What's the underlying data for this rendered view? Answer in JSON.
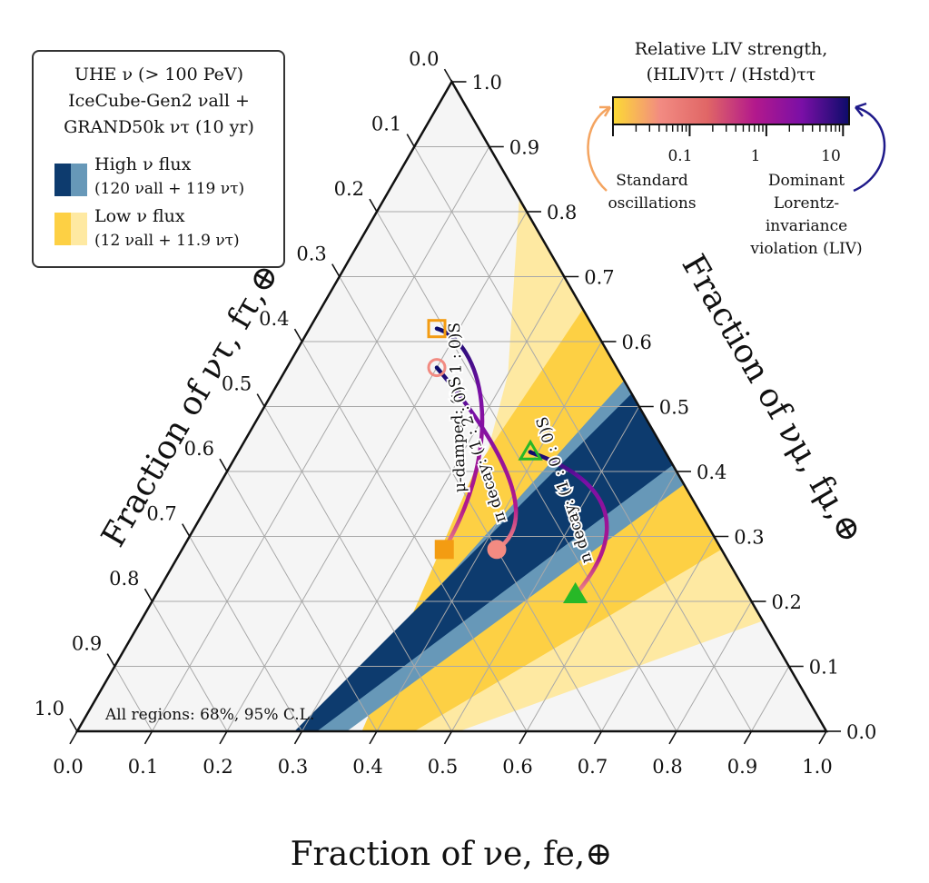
{
  "chart_data": {
    "type": "ternary",
    "axes": {
      "bottom": {
        "label": "Fraction of νe, fe,⊕",
        "ticks": [
          "0.0",
          "0.1",
          "0.2",
          "0.3",
          "0.4",
          "0.5",
          "0.6",
          "0.7",
          "0.8",
          "0.9",
          "1.0"
        ]
      },
      "right": {
        "label": "Fraction of νμ, fμ,⊕",
        "ticks": [
          "0.0",
          "0.1",
          "0.2",
          "0.3",
          "0.4",
          "0.5",
          "0.6",
          "0.7",
          "0.8",
          "0.9",
          "1.0"
        ]
      },
      "left": {
        "label": "Fraction of ντ, fτ,⊕",
        "ticks": [
          "0.0",
          "0.1",
          "0.2",
          "0.3",
          "0.4",
          "0.5",
          "0.6",
          "0.7",
          "0.8",
          "0.9",
          "1.0"
        ]
      }
    },
    "legend": {
      "title_lines": [
        "UHE ν (> 100 PeV)",
        "IceCube-Gen2 νall +",
        "GRAND50k ντ (10 yr)"
      ],
      "entries": [
        {
          "name": "High ν flux",
          "detail": "(120 νall + 119 ντ)",
          "colors": [
            "#0d3b6e",
            "#6798b8"
          ]
        },
        {
          "name": "Low ν flux",
          "detail": "(12 νall + 11.9 ντ)",
          "colors": [
            "#fdd044",
            "#fee9a2"
          ]
        }
      ]
    },
    "note": "All regions: 68%, 95% C.L.",
    "regions": [
      {
        "name": "Low flux 95% C.L.",
        "color": "#fee9a2",
        "poly": [
          [
            0.18,
            0.82,
            0.0
          ],
          [
            0.83,
            0.17,
            0.0
          ],
          [
            0.51,
            0.0,
            0.49
          ],
          [
            0.45,
            0.0,
            0.55
          ],
          [
            0.3,
            0.55,
            0.15
          ]
        ]
      },
      {
        "name": "Low flux 68% C.L.",
        "color": "#fdd044",
        "poly": [
          [
            0.35,
            0.65,
            0.0
          ],
          [
            0.72,
            0.28,
            0.0
          ],
          [
            0.45,
            0.0,
            0.55
          ],
          [
            0.38,
            0.0,
            0.62
          ],
          [
            0.33,
            0.4,
            0.27
          ]
        ]
      },
      {
        "name": "High flux 95% C.L.",
        "color": "#6798b8",
        "poly": [
          [
            0.46,
            0.54,
            0.0
          ],
          [
            0.62,
            0.38,
            0.0
          ],
          [
            0.36,
            0.0,
            0.64
          ],
          [
            0.31,
            0.0,
            0.69
          ]
        ]
      },
      {
        "name": "High flux 68% C.L.",
        "color": "#0d3b6e",
        "poly": [
          [
            0.48,
            0.52,
            0.0
          ],
          [
            0.59,
            0.41,
            0.0
          ],
          [
            0.32,
            0.0,
            0.68
          ],
          [
            0.29,
            0.0,
            0.71
          ]
        ]
      }
    ],
    "paths": [
      {
        "label": "μ-damped: (0 : 1 : 0)S",
        "marker": "square",
        "marker_color": "#f39c12",
        "start": [
          0.35,
          0.28,
          0.37
        ],
        "end": [
          0.17,
          0.62,
          0.21
        ],
        "ctrl1": [
          0.35,
          0.45,
          0.2
        ],
        "ctrl2": [
          0.24,
          0.6,
          0.16
        ]
      },
      {
        "label": "π decay: (1 : 2 : 0)S",
        "marker": "circle",
        "marker_color": "#f28b82",
        "start": [
          0.42,
          0.28,
          0.3
        ],
        "end": [
          0.2,
          0.56,
          0.24
        ],
        "ctrl1": [
          0.47,
          0.34,
          0.19
        ],
        "ctrl2": [
          0.25,
          0.52,
          0.23
        ]
      },
      {
        "label": "n decay: (1 : 0 : 0)S",
        "marker": "triangle",
        "marker_color": "#27b827",
        "start": [
          0.56,
          0.21,
          0.23
        ],
        "end": [
          0.39,
          0.43,
          0.18
        ],
        "ctrl1": [
          0.6,
          0.38,
          0.02
        ],
        "ctrl2": [
          0.38,
          0.43,
          0.19
        ]
      }
    ],
    "colorbar": {
      "title_line1": "Relative LIV strength,",
      "title_line2": "(HLIV)ττ / (Hstd)ττ",
      "scale": "log",
      "range": [
        0.01,
        12
      ],
      "tick_labels": [
        "0.1",
        "1",
        "10"
      ],
      "colors": [
        "#fcdb33",
        "#f28b82",
        "#e06666",
        "#b3198c",
        "#7a0fa6",
        "#0c0c6a"
      ],
      "left_annotation": [
        "Standard",
        "oscillations"
      ],
      "right_annotation": [
        "Dominant",
        "Lorentz-",
        "invariance",
        "violation (LIV)"
      ],
      "left_annotation_color": "#f4a460",
      "right_annotation_color": "#1f1a8a"
    }
  }
}
